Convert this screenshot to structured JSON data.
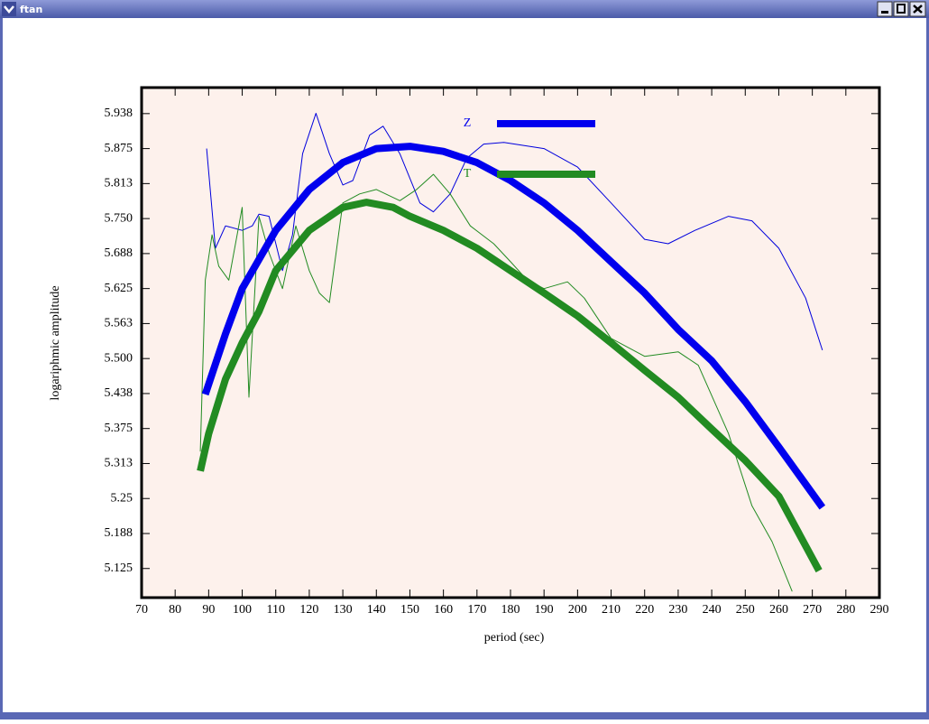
{
  "window": {
    "title": "ftan"
  },
  "chart_data": {
    "type": "line",
    "xlabel": "period (sec)",
    "ylabel": "logariphmic amplitude",
    "xlim": [
      70,
      290
    ],
    "ylim": [
      5.073,
      5.984
    ],
    "xticks": [
      70,
      80,
      90,
      100,
      110,
      120,
      130,
      140,
      150,
      160,
      170,
      180,
      190,
      200,
      210,
      220,
      230,
      240,
      250,
      260,
      270,
      280,
      290
    ],
    "yticks": [
      5.125,
      {
        "value": 5.1875,
        "label": "5.188"
      },
      5.25,
      {
        "value": 5.3125,
        "label": "5.313"
      },
      5.375,
      {
        "value": 5.4375,
        "label": "5.438"
      },
      {
        "value": 5.5,
        "label": "5.500"
      },
      {
        "value": 5.5625,
        "label": "5.563"
      },
      5.625,
      {
        "value": 5.6875,
        "label": "5.688"
      },
      {
        "value": 5.75,
        "label": "5.750"
      },
      {
        "value": 5.8125,
        "label": "5.813"
      },
      5.875,
      {
        "value": 5.9375,
        "label": "5.938"
      }
    ],
    "legend": "top",
    "series": [
      {
        "color": "#0000dd",
        "x": [
          89.4,
          92,
          95,
          100,
          103,
          105,
          108,
          112,
          115,
          118,
          122,
          126,
          130,
          133,
          138,
          142,
          147,
          153,
          157,
          162,
          167,
          172,
          178,
          190,
          200,
          210,
          220,
          227,
          235,
          245,
          252,
          260,
          268,
          273
        ],
        "values": [
          5.875,
          5.697,
          5.737,
          5.729,
          5.737,
          5.758,
          5.754,
          5.657,
          5.721,
          5.866,
          5.938,
          5.866,
          5.81,
          5.818,
          5.899,
          5.915,
          5.866,
          5.778,
          5.762,
          5.794,
          5.858,
          5.883,
          5.886,
          5.875,
          5.842,
          5.778,
          5.713,
          5.705,
          5.729,
          5.754,
          5.746,
          5.697,
          5.608,
          5.515
        ]
      },
      {
        "color": "#228b22",
        "x": [
          87.5,
          89,
          91,
          93,
          96,
          100,
          102,
          105,
          108,
          112,
          116,
          120,
          123,
          126,
          130,
          135,
          140,
          147,
          152,
          157,
          162,
          168,
          175,
          180,
          185,
          190,
          197,
          202,
          210,
          220,
          230,
          236,
          245,
          252,
          258,
          264
        ],
        "values": [
          5.334,
          5.64,
          5.721,
          5.665,
          5.64,
          5.77,
          5.431,
          5.754,
          5.689,
          5.625,
          5.737,
          5.657,
          5.617,
          5.6,
          5.778,
          5.794,
          5.802,
          5.782,
          5.802,
          5.829,
          5.794,
          5.737,
          5.705,
          5.673,
          5.64,
          5.625,
          5.637,
          5.608,
          5.536,
          5.504,
          5.512,
          5.488,
          5.366,
          5.237,
          5.173,
          5.084
        ]
      },
      {
        "name": "Z",
        "color": "#0000ee",
        "x": [
          89,
          95,
          100,
          110,
          120,
          130,
          140,
          150,
          160,
          170,
          180,
          190,
          200,
          210,
          220,
          230,
          240,
          250,
          260,
          273
        ],
        "values": [
          5.436,
          5.544,
          5.625,
          5.729,
          5.802,
          5.85,
          5.875,
          5.879,
          5.87,
          5.85,
          5.818,
          5.778,
          5.729,
          5.673,
          5.617,
          5.552,
          5.496,
          5.423,
          5.342,
          5.234
        ]
      },
      {
        "name": "T",
        "color": "#228b22",
        "x": [
          87.5,
          90,
          95,
          100,
          105,
          110,
          120,
          130,
          137,
          145,
          150,
          160,
          170,
          180,
          190,
          200,
          210,
          220,
          230,
          240,
          250,
          260,
          272
        ],
        "values": [
          5.299,
          5.366,
          5.463,
          5.528,
          5.584,
          5.657,
          5.729,
          5.77,
          5.779,
          5.77,
          5.754,
          5.729,
          5.697,
          5.657,
          5.617,
          5.576,
          5.528,
          5.479,
          5.431,
          5.374,
          5.318,
          5.254,
          5.121
        ]
      }
    ]
  }
}
